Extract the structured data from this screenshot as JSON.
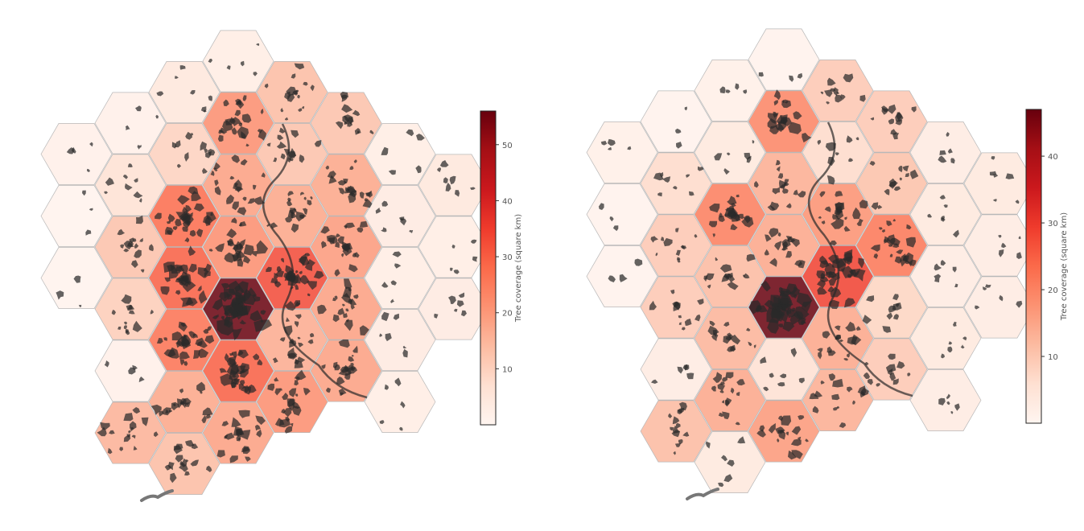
{
  "maps": [
    {
      "colorbar": {
        "label": "Tree coverage (square km)",
        "min": 0,
        "max": 56,
        "ticks": [
          "10",
          "20",
          "30",
          "40",
          "50"
        ],
        "tick_values": [
          10,
          20,
          30,
          40,
          50
        ]
      },
      "hexes": [
        {
          "q": 0,
          "r": -4,
          "v": 3
        },
        {
          "q": -1,
          "r": -3,
          "v": 5
        },
        {
          "q": 1,
          "r": -4,
          "v": 14
        },
        {
          "q": -2,
          "r": -2,
          "v": 2
        },
        {
          "q": 0,
          "r": -3,
          "v": 22
        },
        {
          "q": 2,
          "r": -4,
          "v": 13
        },
        {
          "q": -1,
          "r": -2,
          "v": 10
        },
        {
          "q": 1,
          "r": -3,
          "v": 13
        },
        {
          "q": 3,
          "r": -4,
          "v": 3
        },
        {
          "q": -3,
          "r": -1,
          "v": 2
        },
        {
          "q": -2,
          "r": -1,
          "v": 7
        },
        {
          "q": 0,
          "r": -2,
          "v": 19
        },
        {
          "q": 2,
          "r": -3,
          "v": 18
        },
        {
          "q": 4,
          "r": -4,
          "v": 5
        },
        {
          "q": -1,
          "r": -1,
          "v": 28
        },
        {
          "q": 1,
          "r": -2,
          "v": 18
        },
        {
          "q": 3,
          "r": -3,
          "v": 4
        },
        {
          "q": -3,
          "r": 0,
          "v": 1
        },
        {
          "q": -2,
          "r": 0,
          "v": 13
        },
        {
          "q": 0,
          "r": -1,
          "v": 22
        },
        {
          "q": 2,
          "r": -2,
          "v": 20
        },
        {
          "q": 4,
          "r": -3,
          "v": 3
        },
        {
          "q": -1,
          "r": 0,
          "v": 30
        },
        {
          "q": 1,
          "r": -1,
          "v": 33
        },
        {
          "q": 3,
          "r": -2,
          "v": 3
        },
        {
          "q": -3,
          "r": 1,
          "v": 1
        },
        {
          "q": -2,
          "r": 1,
          "v": 11
        },
        {
          "q": 0,
          "r": 0,
          "v": 56
        },
        {
          "q": 2,
          "r": -1,
          "v": 19
        },
        {
          "q": 4,
          "r": -2,
          "v": 4
        },
        {
          "q": -1,
          "r": 1,
          "v": 27
        },
        {
          "q": 1,
          "r": 0,
          "v": 17
        },
        {
          "q": 3,
          "r": -1,
          "v": 4
        },
        {
          "q": -2,
          "r": 2,
          "v": 2
        },
        {
          "q": 0,
          "r": 1,
          "v": 30
        },
        {
          "q": 2,
          "r": 0,
          "v": 19
        },
        {
          "q": -1,
          "r": 2,
          "v": 18
        },
        {
          "q": 1,
          "r": 1,
          "v": 22
        },
        {
          "q": 3,
          "r": 0,
          "v": 3
        },
        {
          "q": -2,
          "r": 3,
          "v": 16
        },
        {
          "q": 0,
          "r": 2,
          "v": 19
        },
        {
          "q": -1,
          "r": 3,
          "v": 14
        }
      ]
    },
    {
      "colorbar": {
        "label": "Tree coverage (square km)",
        "min": 0,
        "max": 47,
        "ticks": [
          "10",
          "20",
          "30",
          "40"
        ],
        "tick_values": [
          10,
          20,
          30,
          40
        ]
      },
      "hexes": [
        {
          "q": 0,
          "r": -4,
          "v": 1
        },
        {
          "q": -1,
          "r": -3,
          "v": 2
        },
        {
          "q": 1,
          "r": -4,
          "v": 10
        },
        {
          "q": -2,
          "r": -2,
          "v": 1
        },
        {
          "q": 0,
          "r": -3,
          "v": 20
        },
        {
          "q": 2,
          "r": -4,
          "v": 10
        },
        {
          "q": -1,
          "r": -2,
          "v": 4
        },
        {
          "q": 1,
          "r": -3,
          "v": 7
        },
        {
          "q": 3,
          "r": -4,
          "v": 3
        },
        {
          "q": -3,
          "r": -1,
          "v": 2
        },
        {
          "q": -2,
          "r": -1,
          "v": 7
        },
        {
          "q": 0,
          "r": -2,
          "v": 14
        },
        {
          "q": 2,
          "r": -3,
          "v": 11
        },
        {
          "q": 4,
          "r": -4,
          "v": 4
        },
        {
          "q": -1,
          "r": -1,
          "v": 21
        },
        {
          "q": 1,
          "r": -2,
          "v": 18
        },
        {
          "q": 3,
          "r": -3,
          "v": 4
        },
        {
          "q": -3,
          "r": 0,
          "v": 1
        },
        {
          "q": -2,
          "r": 0,
          "v": 10
        },
        {
          "q": 0,
          "r": -1,
          "v": 15
        },
        {
          "q": 2,
          "r": -2,
          "v": 22
        },
        {
          "q": 4,
          "r": -3,
          "v": 3
        },
        {
          "q": -1,
          "r": 0,
          "v": 12
        },
        {
          "q": 1,
          "r": -1,
          "v": 29
        },
        {
          "q": 3,
          "r": -2,
          "v": 3
        },
        {
          "q": -3,
          "r": 1,
          "v": 1
        },
        {
          "q": -2,
          "r": 1,
          "v": 10
        },
        {
          "q": 0,
          "r": 0,
          "v": 47
        },
        {
          "q": 2,
          "r": -1,
          "v": 8
        },
        {
          "q": 4,
          "r": -2,
          "v": 3
        },
        {
          "q": -1,
          "r": 1,
          "v": 13
        },
        {
          "q": 1,
          "r": 0,
          "v": 15
        },
        {
          "q": 3,
          "r": -1,
          "v": 4
        },
        {
          "q": -2,
          "r": 2,
          "v": 3
        },
        {
          "q": 0,
          "r": 1,
          "v": 6
        },
        {
          "q": 2,
          "r": 0,
          "v": 10
        },
        {
          "q": -1,
          "r": 2,
          "v": 15
        },
        {
          "q": 1,
          "r": 1,
          "v": 14
        },
        {
          "q": 3,
          "r": 0,
          "v": 3
        },
        {
          "q": -2,
          "r": 3,
          "v": 12
        },
        {
          "q": 0,
          "r": 2,
          "v": 17
        },
        {
          "q": -1,
          "r": 3,
          "v": 4
        }
      ]
    }
  ],
  "colors": {
    "ramp": [
      "#fff5f0",
      "#fee0d2",
      "#fcbba1",
      "#fc9272",
      "#fb6a4a",
      "#ef3b2c",
      "#cb181d",
      "#a50f15",
      "#67000d"
    ],
    "hex_stroke": "#b8b8b8",
    "forest": "#2a2a2a",
    "river": "#777777"
  }
}
